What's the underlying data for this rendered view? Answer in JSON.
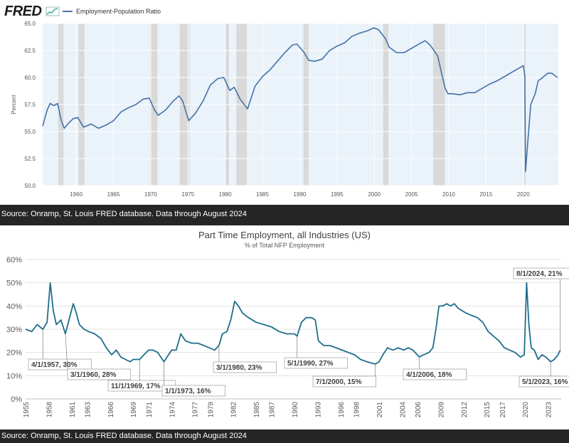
{
  "top_chart": {
    "logo": "FRED",
    "logo_icon": "fred-chart-icon",
    "legend_label": "Employment-Population Ratio",
    "source": "Source: Onramp, St. Louis FRED database. Data through August 2024"
  },
  "bottom_chart": {
    "source": "Source: Onramp, St. Louis FRED database. Data through August 2024"
  },
  "colors": {
    "fred_line": "#4572a7",
    "fred_plot_bg": "#eaf2fa",
    "recession": "#d9d9d9",
    "pt_line": "#1f6e8c"
  },
  "chart_data": [
    {
      "type": "line",
      "title": "",
      "legend": [
        "Employment-Population Ratio"
      ],
      "ylabel": "Percent",
      "xlim": [
        1955.5,
        2024.7
      ],
      "ylim": [
        50.0,
        65.0
      ],
      "yticks": [
        "65.0",
        "62.5",
        "60.0",
        "57.5",
        "55.0",
        "52.5",
        "50.0"
      ],
      "xticks": [
        "1960",
        "1965",
        "1970",
        "1975",
        "1980",
        "1985",
        "1990",
        "1995",
        "2000",
        "2005",
        "2010",
        "2015",
        "2020"
      ],
      "grid": true,
      "legend_position": "top-left",
      "recessions": [
        [
          1957.6,
          1958.3
        ],
        [
          1960.3,
          1961.1
        ],
        [
          1969.9,
          1970.9
        ],
        [
          1973.9,
          1975.2
        ],
        [
          1980.0,
          1980.5
        ],
        [
          1981.5,
          1982.9
        ],
        [
          1990.5,
          1991.2
        ],
        [
          2001.2,
          2001.9
        ],
        [
          2007.9,
          2009.5
        ],
        [
          2020.1,
          2020.3
        ]
      ],
      "series": [
        {
          "name": "Employment-Population Ratio",
          "points": [
            [
              1955.5,
              55.5
            ],
            [
              1956.1,
              57.0
            ],
            [
              1956.5,
              57.6
            ],
            [
              1957.0,
              57.4
            ],
            [
              1957.5,
              57.6
            ],
            [
              1958.0,
              56.0
            ],
            [
              1958.4,
              55.3
            ],
            [
              1959.0,
              55.8
            ],
            [
              1959.6,
              56.2
            ],
            [
              1960.2,
              56.3
            ],
            [
              1961.0,
              55.4
            ],
            [
              1962.0,
              55.7
            ],
            [
              1963.0,
              55.3
            ],
            [
              1964.0,
              55.6
            ],
            [
              1965.0,
              56.0
            ],
            [
              1966.0,
              56.8
            ],
            [
              1967.0,
              57.2
            ],
            [
              1968.0,
              57.5
            ],
            [
              1969.0,
              58.0
            ],
            [
              1969.8,
              58.1
            ],
            [
              1970.5,
              57.0
            ],
            [
              1971.0,
              56.5
            ],
            [
              1972.0,
              57.0
            ],
            [
              1973.0,
              57.8
            ],
            [
              1973.8,
              58.3
            ],
            [
              1974.3,
              57.8
            ],
            [
              1975.1,
              56.0
            ],
            [
              1976.0,
              56.7
            ],
            [
              1977.0,
              57.8
            ],
            [
              1978.0,
              59.3
            ],
            [
              1979.0,
              59.9
            ],
            [
              1979.8,
              60.0
            ],
            [
              1980.6,
              58.8
            ],
            [
              1981.2,
              59.1
            ],
            [
              1982.0,
              58.0
            ],
            [
              1983.0,
              57.1
            ],
            [
              1984.0,
              59.2
            ],
            [
              1985.0,
              60.1
            ],
            [
              1986.0,
              60.7
            ],
            [
              1987.0,
              61.5
            ],
            [
              1988.0,
              62.3
            ],
            [
              1989.0,
              63.0
            ],
            [
              1989.6,
              63.1
            ],
            [
              1990.5,
              62.4
            ],
            [
              1991.2,
              61.6
            ],
            [
              1992.0,
              61.5
            ],
            [
              1993.0,
              61.7
            ],
            [
              1994.0,
              62.5
            ],
            [
              1995.0,
              62.9
            ],
            [
              1996.0,
              63.2
            ],
            [
              1997.0,
              63.8
            ],
            [
              1998.0,
              64.1
            ],
            [
              1999.0,
              64.3
            ],
            [
              2000.0,
              64.6
            ],
            [
              2000.6,
              64.4
            ],
            [
              2001.5,
              63.6
            ],
            [
              2002.0,
              62.8
            ],
            [
              2003.0,
              62.3
            ],
            [
              2004.0,
              62.3
            ],
            [
              2005.0,
              62.7
            ],
            [
              2006.0,
              63.1
            ],
            [
              2006.8,
              63.4
            ],
            [
              2007.5,
              63.0
            ],
            [
              2008.5,
              62.0
            ],
            [
              2009.0,
              60.5
            ],
            [
              2009.5,
              59.0
            ],
            [
              2009.9,
              58.5
            ],
            [
              2010.5,
              58.5
            ],
            [
              2011.5,
              58.4
            ],
            [
              2012.5,
              58.6
            ],
            [
              2013.5,
              58.6
            ],
            [
              2014.5,
              59.0
            ],
            [
              2015.5,
              59.4
            ],
            [
              2016.5,
              59.7
            ],
            [
              2017.5,
              60.1
            ],
            [
              2018.5,
              60.5
            ],
            [
              2019.5,
              60.9
            ],
            [
              2020.0,
              61.1
            ],
            [
              2020.2,
              60.1
            ],
            [
              2020.3,
              51.3
            ],
            [
              2020.6,
              54.0
            ],
            [
              2021.0,
              57.5
            ],
            [
              2021.6,
              58.5
            ],
            [
              2022.0,
              59.7
            ],
            [
              2022.6,
              60.0
            ],
            [
              2023.3,
              60.4
            ],
            [
              2023.8,
              60.4
            ],
            [
              2024.2,
              60.2
            ],
            [
              2024.6,
              60.0
            ]
          ]
        }
      ]
    },
    {
      "type": "line",
      "title": "Part Time Employment, all Industries (US)",
      "subtitle": "% of Total NFP Employment",
      "xlim": [
        1955.0,
        2024.7
      ],
      "ylim": [
        0,
        60
      ],
      "yticks": [
        "60%",
        "50%",
        "40%",
        "30%",
        "20%",
        "10%",
        "0%"
      ],
      "xticks": [
        "1955",
        "1958",
        "1961",
        "1963",
        "1966",
        "1969",
        "1971",
        "1974",
        "1977",
        "1979",
        "1982",
        "1985",
        "1987",
        "1990",
        "1993",
        "1996",
        "1998",
        "2001",
        "2004",
        "2006",
        "2009",
        "2012",
        "2015",
        "2017",
        "2020",
        "2023"
      ],
      "grid": true,
      "series": [
        {
          "name": "",
          "points": [
            [
              1955.0,
              30
            ],
            [
              1955.8,
              29
            ],
            [
              1956.5,
              32
            ],
            [
              1957.25,
              30
            ],
            [
              1957.8,
              33
            ],
            [
              1958.2,
              50
            ],
            [
              1958.6,
              38
            ],
            [
              1959.0,
              32
            ],
            [
              1959.6,
              34
            ],
            [
              1960.17,
              28
            ],
            [
              1960.8,
              36
            ],
            [
              1961.2,
              41
            ],
            [
              1961.6,
              37
            ],
            [
              1962.0,
              32
            ],
            [
              1962.6,
              30
            ],
            [
              1963.2,
              29
            ],
            [
              1964.0,
              28
            ],
            [
              1964.8,
              26
            ],
            [
              1965.5,
              22
            ],
            [
              1966.2,
              19
            ],
            [
              1966.8,
              21
            ],
            [
              1967.4,
              18
            ],
            [
              1968.0,
              17
            ],
            [
              1968.6,
              16
            ],
            [
              1969.0,
              17
            ],
            [
              1969.83,
              17
            ],
            [
              1970.4,
              19
            ],
            [
              1971.0,
              21
            ],
            [
              1971.6,
              21
            ],
            [
              1972.2,
              20
            ],
            [
              1973.0,
              16
            ],
            [
              1973.6,
              19
            ],
            [
              1974.0,
              21
            ],
            [
              1974.6,
              21
            ],
            [
              1975.2,
              28
            ],
            [
              1975.8,
              25
            ],
            [
              1976.6,
              24
            ],
            [
              1977.4,
              24
            ],
            [
              1978.2,
              23
            ],
            [
              1978.9,
              22
            ],
            [
              1979.6,
              21
            ],
            [
              1980.17,
              23
            ],
            [
              1980.6,
              28
            ],
            [
              1981.2,
              29
            ],
            [
              1981.7,
              34
            ],
            [
              1982.2,
              42
            ],
            [
              1982.7,
              40
            ],
            [
              1983.2,
              37
            ],
            [
              1984.0,
              35
            ],
            [
              1985.0,
              33
            ],
            [
              1986.0,
              32
            ],
            [
              1987.0,
              31
            ],
            [
              1988.0,
              29
            ],
            [
              1989.0,
              28
            ],
            [
              1990.0,
              28
            ],
            [
              1990.33,
              27
            ],
            [
              1990.9,
              33
            ],
            [
              1991.5,
              35
            ],
            [
              1992.2,
              35
            ],
            [
              1992.7,
              34
            ],
            [
              1993.1,
              25
            ],
            [
              1993.8,
              23
            ],
            [
              1994.6,
              23
            ],
            [
              1995.4,
              22
            ],
            [
              1996.2,
              21
            ],
            [
              1997.0,
              20
            ],
            [
              1997.8,
              19
            ],
            [
              1998.6,
              17
            ],
            [
              1999.4,
              16
            ],
            [
              2000.5,
              15
            ],
            [
              2001.0,
              16
            ],
            [
              2001.5,
              19
            ],
            [
              2002.1,
              22
            ],
            [
              2002.8,
              21
            ],
            [
              2003.5,
              22
            ],
            [
              2004.2,
              21
            ],
            [
              2004.8,
              22
            ],
            [
              2005.4,
              21
            ],
            [
              2006.25,
              18
            ],
            [
              2006.8,
              19
            ],
            [
              2007.5,
              20
            ],
            [
              2008.0,
              22
            ],
            [
              2008.4,
              30
            ],
            [
              2008.8,
              40
            ],
            [
              2009.3,
              40
            ],
            [
              2009.8,
              41
            ],
            [
              2010.3,
              40
            ],
            [
              2010.8,
              41
            ],
            [
              2011.3,
              39
            ],
            [
              2011.8,
              38
            ],
            [
              2012.3,
              37
            ],
            [
              2013.0,
              36
            ],
            [
              2013.8,
              35
            ],
            [
              2014.5,
              33
            ],
            [
              2015.2,
              29
            ],
            [
              2015.9,
              27
            ],
            [
              2016.6,
              25
            ],
            [
              2017.3,
              22
            ],
            [
              2018.0,
              21
            ],
            [
              2018.7,
              20
            ],
            [
              2019.4,
              18
            ],
            [
              2019.9,
              19
            ],
            [
              2020.2,
              50
            ],
            [
              2020.5,
              32
            ],
            [
              2020.8,
              22
            ],
            [
              2021.2,
              21
            ],
            [
              2021.7,
              17
            ],
            [
              2022.2,
              19
            ],
            [
              2022.7,
              18
            ],
            [
              2023.33,
              16
            ],
            [
              2023.8,
              17
            ],
            [
              2024.3,
              19
            ],
            [
              2024.58,
              21
            ]
          ]
        }
      ],
      "annotations": [
        {
          "label": "4/1/1957, 30%",
          "x": 1957.25,
          "y": 30
        },
        {
          "label": "3/1/1960, 28%",
          "x": 1960.17,
          "y": 28
        },
        {
          "label": "11/1/1969, 17%",
          "x": 1969.83,
          "y": 17
        },
        {
          "label": "1/1/1973, 16%",
          "x": 1973.0,
          "y": 16
        },
        {
          "label": "3/1/1980, 23%",
          "x": 1980.17,
          "y": 23
        },
        {
          "label": "5/1/1990, 27%",
          "x": 1990.33,
          "y": 27
        },
        {
          "label": "7/1/2000, 15%",
          "x": 2000.5,
          "y": 15
        },
        {
          "label": "4/1/2006, 18%",
          "x": 2006.25,
          "y": 18
        },
        {
          "label": "8/1/2024, 21%",
          "x": 2024.58,
          "y": 21
        },
        {
          "label": "5/1/2023, 16%",
          "x": 2023.33,
          "y": 16
        }
      ]
    }
  ]
}
